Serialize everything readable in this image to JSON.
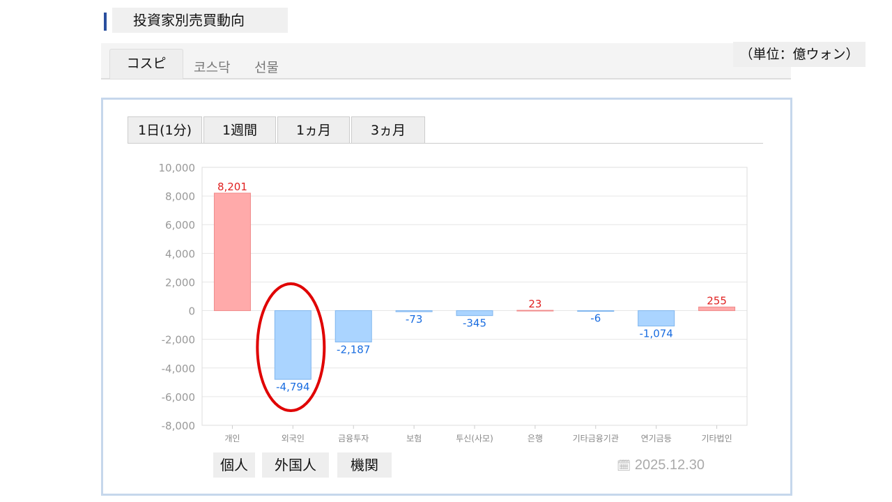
{
  "header": {
    "title": "投資家別売買動向",
    "unit": "（単位：億ウォン）"
  },
  "market_tabs": [
    "コスピ",
    "코스닥",
    "선물"
  ],
  "period_tabs": [
    "1日(1分)",
    "1週間",
    "1ヵ月",
    "3ヵ月"
  ],
  "investor_filters": [
    "個人",
    "外国人",
    "機関"
  ],
  "date": "2025.12.30",
  "colors": {
    "positive_bar": "#ffaaaa",
    "positive_label": "#e02020",
    "negative_bar": "#aad4ff",
    "negative_label": "#1a6de0",
    "highlight_circle": "#e00000"
  },
  "chart_data": {
    "type": "bar",
    "categories": [
      "개인",
      "외국인",
      "금융투자",
      "보험",
      "투신(사모)",
      "은행",
      "기타금융기관",
      "연기금등",
      "기타법인"
    ],
    "values": [
      8201,
      -4794,
      -2187,
      -73,
      -345,
      23,
      -6,
      -1074,
      255
    ],
    "data_labels": [
      "8,201",
      "-4,794",
      "-2,187",
      "-73",
      "-345",
      "23",
      "-6",
      "-1,074",
      "255"
    ],
    "ylim": [
      -8000,
      10000
    ],
    "yticks": [
      "10,000",
      "8,000",
      "6,000",
      "4,000",
      "2,000",
      "0",
      "-2,000",
      "-4,000",
      "-6,000",
      "-8,000"
    ],
    "ytick_values": [
      10000,
      8000,
      6000,
      4000,
      2000,
      0,
      -2000,
      -4000,
      -6000,
      -8000
    ],
    "grid": true,
    "highlighted_category": "외국인"
  }
}
